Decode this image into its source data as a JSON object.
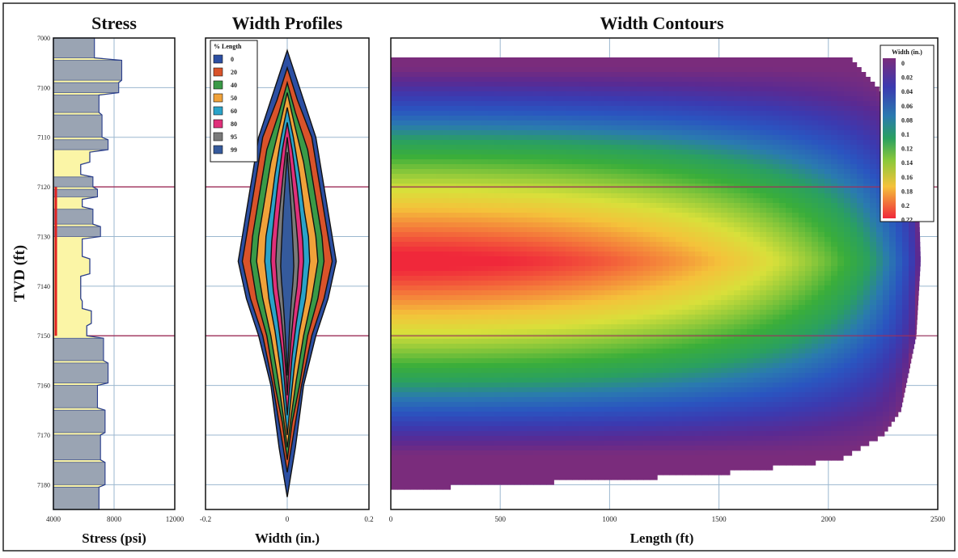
{
  "chart_data": [
    {
      "type": "area",
      "title": "Stress",
      "xlabel": "Stress (psi)",
      "ylabel": "TVD (ft)",
      "xlim": [
        4000,
        12000
      ],
      "ylim": [
        7000,
        7190
      ],
      "x_ticks": [
        "4000",
        "8000",
        "12000"
      ],
      "y_ticks": [
        "7000",
        "7100",
        "7110",
        "7120",
        "7130",
        "7140",
        "7150",
        "7160",
        "7170",
        "7180"
      ],
      "series": [
        {
          "tvd": [
            7000,
            7008,
            7009,
            7017,
            7018,
            7022,
            7023,
            7030,
            7031,
            7040,
            7041,
            7045,
            7046,
            7050,
            7051,
            7055,
            7056,
            7060,
            7061,
            7064,
            7065,
            7068,
            7069,
            7075,
            7076,
            7080,
            7081,
            7088,
            7089,
            7095,
            7096,
            7105,
            7106,
            7109,
            7110,
            7115,
            7116,
            7120,
            7121,
            7130,
            7131,
            7139,
            7140,
            7149,
            7150,
            7159,
            7160,
            7170,
            7171,
            7180,
            7181,
            7190
          ],
          "stress": [
            6700,
            6700,
            8500,
            8500,
            8300,
            8300,
            7000,
            7000,
            7200,
            7200,
            7600,
            7600,
            6400,
            6400,
            5800,
            5800,
            6600,
            6600,
            6900,
            6900,
            5900,
            5900,
            6600,
            6600,
            7100,
            7100,
            5900,
            5900,
            6400,
            6400,
            5800,
            5800,
            5900,
            5900,
            6500,
            6500,
            6200,
            6200,
            7300,
            7300,
            7600,
            7600,
            6900,
            6900,
            7400,
            7400,
            7100,
            7100,
            7400,
            7400,
            7000,
            7000
          ]
        }
      ]
    },
    {
      "type": "area",
      "title": "Width Profiles",
      "xlabel": "Width (in.)",
      "xlim": [
        -0.2,
        0.2
      ],
      "ylim": [
        7000,
        7190
      ],
      "x_ticks": [
        "-0.2",
        "0",
        "0.2"
      ],
      "legend": {
        "title": "% Length",
        "placement": "top-left"
      },
      "series": [
        {
          "name": "0",
          "color": "#2c4fa3",
          "tvd": [
            7005,
            7020,
            7040,
            7060,
            7080,
            7090,
            7105,
            7120,
            7140,
            7165,
            7185
          ],
          "half_width": [
            0.0,
            0.03,
            0.07,
            0.09,
            0.11,
            0.12,
            0.1,
            0.07,
            0.04,
            0.02,
            0.0
          ]
        },
        {
          "name": "20",
          "color": "#d9532a",
          "tvd": [
            7012,
            7025,
            7040,
            7060,
            7080,
            7090,
            7105,
            7120,
            7140,
            7160,
            7175
          ],
          "half_width": [
            0.0,
            0.025,
            0.06,
            0.08,
            0.1,
            0.11,
            0.09,
            0.06,
            0.035,
            0.015,
            0.0
          ]
        },
        {
          "name": "40",
          "color": "#3a9a47",
          "tvd": [
            7018,
            7030,
            7045,
            7060,
            7080,
            7090,
            7105,
            7120,
            7140,
            7155,
            7170
          ],
          "half_width": [
            0.0,
            0.02,
            0.05,
            0.065,
            0.085,
            0.09,
            0.075,
            0.05,
            0.03,
            0.012,
            0.0
          ]
        },
        {
          "name": "50",
          "color": "#f0a23a",
          "tvd": [
            7022,
            7035,
            7050,
            7065,
            7080,
            7090,
            7105,
            7120,
            7138,
            7152,
            7165
          ],
          "half_width": [
            0.0,
            0.018,
            0.04,
            0.055,
            0.07,
            0.075,
            0.06,
            0.04,
            0.022,
            0.01,
            0.0
          ]
        },
        {
          "name": "60",
          "color": "#2aa3c9",
          "tvd": [
            7028,
            7040,
            7055,
            7070,
            7080,
            7090,
            7105,
            7118,
            7133,
            7147,
            7160
          ],
          "half_width": [
            0.0,
            0.015,
            0.03,
            0.042,
            0.052,
            0.055,
            0.045,
            0.03,
            0.017,
            0.008,
            0.0
          ]
        },
        {
          "name": "80",
          "color": "#e0307a",
          "tvd": [
            7034,
            7045,
            7060,
            7072,
            7082,
            7090,
            7102,
            7115,
            7128,
            7140,
            7152
          ],
          "half_width": [
            0.0,
            0.012,
            0.024,
            0.032,
            0.038,
            0.04,
            0.034,
            0.022,
            0.012,
            0.006,
            0.0
          ]
        },
        {
          "name": "95",
          "color": "#7a7a7a",
          "tvd": [
            7040,
            7052,
            7065,
            7075,
            7083,
            7090,
            7100,
            7110,
            7122,
            7133,
            7144
          ],
          "half_width": [
            0.0,
            0.008,
            0.016,
            0.022,
            0.026,
            0.028,
            0.024,
            0.016,
            0.009,
            0.004,
            0.0
          ]
        },
        {
          "name": "99",
          "color": "#355a9c",
          "tvd": [
            7046,
            7058,
            7070,
            7080,
            7087,
            7092,
            7098,
            7106,
            7116,
            7126,
            7136
          ],
          "half_width": [
            0.0,
            0.005,
            0.01,
            0.013,
            0.015,
            0.016,
            0.014,
            0.01,
            0.006,
            0.003,
            0.0
          ]
        }
      ]
    },
    {
      "type": "heatmap",
      "title": "Width Contours",
      "xlabel": "Length (ft)",
      "xlim": [
        0,
        2500
      ],
      "ylim": [
        7000,
        7190
      ],
      "x_ticks": [
        "0",
        "500",
        "1000",
        "1500",
        "2000",
        "2500"
      ],
      "legend": {
        "title": "Width (in.)",
        "placement": "top-right",
        "labels": [
          "0",
          "0.02",
          "0.04",
          "0.06",
          "0.08",
          "0.1",
          "0.12",
          "0.14",
          "0.16",
          "0.18",
          "0.2",
          "0.22"
        ]
      },
      "colorscale": [
        "#7a2c7c",
        "#5a2a92",
        "#3b3ab0",
        "#2a55c0",
        "#2a7ab0",
        "#2aa060",
        "#3aae3a",
        "#8cc83a",
        "#d8e03a",
        "#f4c23a",
        "#f47a3a",
        "#f0283a"
      ],
      "fracture_outline": {
        "tvd": [
          7008,
          7030,
          7060,
          7090,
          7120,
          7150,
          7160,
          7170,
          7176,
          7182
        ],
        "length": [
          2100,
          2330,
          2410,
          2420,
          2400,
          2330,
          2250,
          2050,
          1450,
          0
        ]
      },
      "max_width_tvd": 7090,
      "max_width": 0.22
    }
  ]
}
